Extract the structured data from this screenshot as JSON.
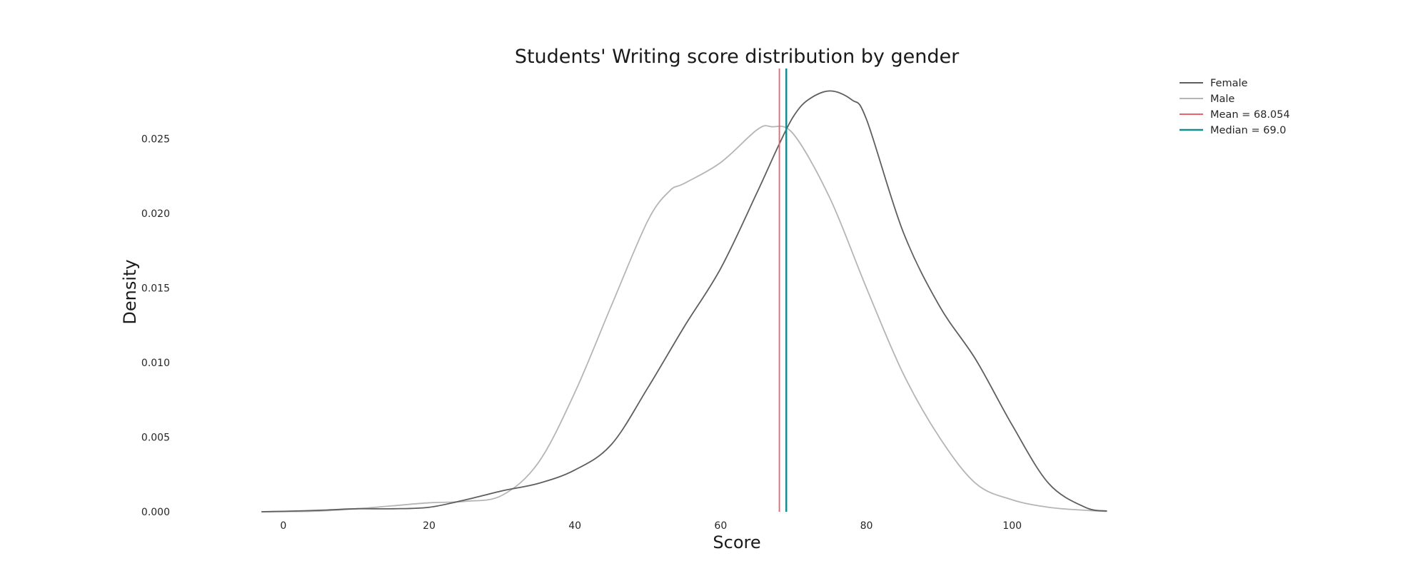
{
  "chart_data": {
    "type": "line",
    "title": "Students' Writing score distribution by gender",
    "xlabel": "Score",
    "ylabel": "Density",
    "xlim": [
      -4,
      116
    ],
    "ylim": [
      0,
      0.0297
    ],
    "x_ticks": [
      0,
      20,
      40,
      60,
      80,
      100
    ],
    "y_ticks": [
      0.0,
      0.005,
      0.01,
      0.015,
      0.02,
      0.025
    ],
    "y_tick_labels": [
      "0.000",
      "0.005",
      "0.010",
      "0.015",
      "0.020",
      "0.025"
    ],
    "grid": false,
    "legend_position": "top-right",
    "series": [
      {
        "name": "Female",
        "color": "#5e5e5e",
        "x": [
          -3,
          0,
          5,
          10,
          15,
          20,
          25,
          30,
          35,
          40,
          45,
          50,
          55,
          60,
          65,
          68,
          70,
          72,
          75,
          78,
          80,
          85,
          90,
          95,
          100,
          105,
          110,
          113
        ],
        "y": [
          0.0,
          3e-05,
          0.0001,
          0.0002,
          0.0002,
          0.0003,
          0.0008,
          0.0014,
          0.0019,
          0.0028,
          0.0045,
          0.0083,
          0.0124,
          0.0163,
          0.0214,
          0.0246,
          0.0265,
          0.0276,
          0.0282,
          0.0276,
          0.0263,
          0.0188,
          0.0138,
          0.0102,
          0.0058,
          0.0019,
          0.0003,
          5e-05
        ]
      },
      {
        "name": "Male",
        "color": "#b5b5b5",
        "x": [
          -3,
          0,
          5,
          10,
          15,
          20,
          25,
          30,
          35,
          40,
          45,
          50,
          53,
          55,
          60,
          65,
          67,
          70,
          75,
          80,
          85,
          90,
          95,
          100,
          105,
          110,
          113
        ],
        "y": [
          0.0,
          1e-05,
          5e-05,
          0.0002,
          0.0004,
          0.0006,
          0.0007,
          0.0011,
          0.0033,
          0.008,
          0.0138,
          0.0195,
          0.0215,
          0.022,
          0.0234,
          0.0256,
          0.0258,
          0.0253,
          0.021,
          0.015,
          0.0093,
          0.005,
          0.0019,
          0.0008,
          0.0003,
          0.0001,
          3e-05
        ]
      }
    ],
    "vertical_lines": [
      {
        "name": "Mean = 68.054",
        "x": 68.054,
        "color": "#e8636b"
      },
      {
        "name": "Median = 69.0",
        "x": 69.0,
        "color": "#168c8c"
      }
    ]
  }
}
